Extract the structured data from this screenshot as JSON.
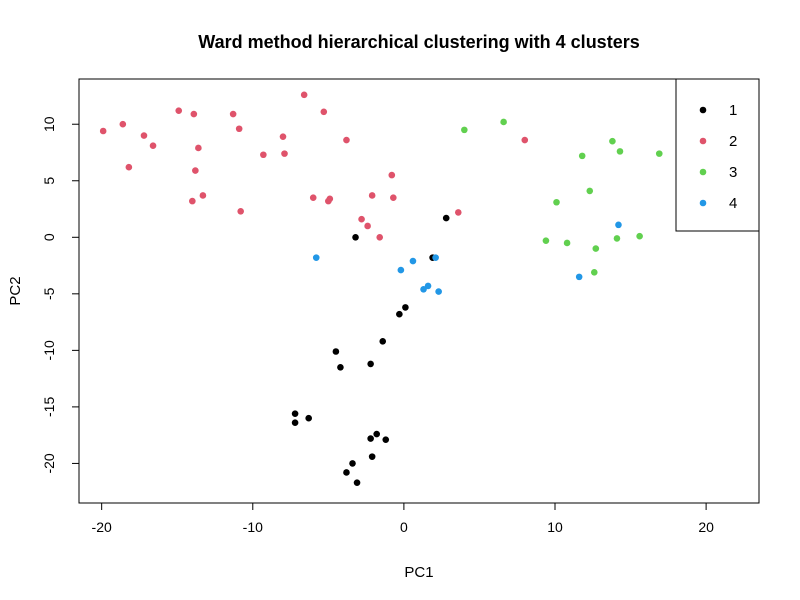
{
  "chart_data": {
    "type": "scatter",
    "title": "Ward method hierarchical clustering with 4 clusters",
    "xlabel": "PC1",
    "ylabel": "PC2",
    "xlim": [
      -21.5,
      23.5
    ],
    "ylim": [
      -23.5,
      14
    ],
    "x_ticks": [
      -20,
      -10,
      0,
      10,
      20
    ],
    "y_ticks": [
      -20,
      -15,
      -10,
      -5,
      0,
      5,
      10
    ],
    "legend": {
      "position": "top-right",
      "entries": [
        "1",
        "2",
        "3",
        "4"
      ]
    },
    "series": [
      {
        "name": "1",
        "color": "#000000",
        "points": [
          [
            -3.2,
            0.0
          ],
          [
            2.8,
            1.7
          ],
          [
            1.9,
            -1.8
          ],
          [
            0.1,
            -6.2
          ],
          [
            -0.3,
            -6.8
          ],
          [
            -1.4,
            -9.2
          ],
          [
            -4.5,
            -10.1
          ],
          [
            -4.2,
            -11.5
          ],
          [
            -2.2,
            -11.2
          ],
          [
            -7.2,
            -15.6
          ],
          [
            -7.2,
            -16.4
          ],
          [
            -6.3,
            -16.0
          ],
          [
            -1.8,
            -17.4
          ],
          [
            -2.2,
            -17.8
          ],
          [
            -1.2,
            -17.9
          ],
          [
            -2.1,
            -19.4
          ],
          [
            -3.4,
            -20.0
          ],
          [
            -3.8,
            -20.8
          ],
          [
            -3.1,
            -21.7
          ]
        ]
      },
      {
        "name": "2",
        "color": "#DF536B",
        "points": [
          [
            -19.9,
            9.4
          ],
          [
            -18.6,
            10.0
          ],
          [
            -17.2,
            9.0
          ],
          [
            -16.6,
            8.1
          ],
          [
            -18.2,
            6.2
          ],
          [
            -14.9,
            11.2
          ],
          [
            -13.9,
            10.9
          ],
          [
            -13.6,
            7.9
          ],
          [
            -13.8,
            5.9
          ],
          [
            -14.0,
            3.2
          ],
          [
            -13.3,
            3.7
          ],
          [
            -11.3,
            10.9
          ],
          [
            -10.9,
            9.6
          ],
          [
            -10.8,
            2.3
          ],
          [
            -9.3,
            7.3
          ],
          [
            -8.0,
            8.9
          ],
          [
            -7.9,
            7.4
          ],
          [
            -6.6,
            12.6
          ],
          [
            -6.0,
            3.5
          ],
          [
            -5.3,
            11.1
          ],
          [
            -4.9,
            3.4
          ],
          [
            -5.0,
            3.2
          ],
          [
            -3.8,
            8.6
          ],
          [
            -2.8,
            1.6
          ],
          [
            -2.4,
            1.0
          ],
          [
            -2.1,
            3.7
          ],
          [
            -1.6,
            0.0
          ],
          [
            -0.8,
            5.5
          ],
          [
            -0.7,
            3.5
          ],
          [
            3.6,
            2.2
          ],
          [
            8.0,
            8.6
          ]
        ]
      },
      {
        "name": "3",
        "color": "#61D04F",
        "points": [
          [
            4.0,
            9.5
          ],
          [
            6.6,
            10.2
          ],
          [
            9.4,
            -0.3
          ],
          [
            10.1,
            3.1
          ],
          [
            10.8,
            -0.5
          ],
          [
            11.8,
            7.2
          ],
          [
            12.3,
            4.1
          ],
          [
            12.7,
            -1.0
          ],
          [
            12.6,
            -3.1
          ],
          [
            13.8,
            8.5
          ],
          [
            14.3,
            7.6
          ],
          [
            14.1,
            -0.1
          ],
          [
            15.6,
            0.1
          ],
          [
            16.9,
            7.4
          ]
        ]
      },
      {
        "name": "4",
        "color": "#2297E6",
        "points": [
          [
            -5.8,
            -1.8
          ],
          [
            -0.2,
            -2.9
          ],
          [
            0.6,
            -2.1
          ],
          [
            1.3,
            -4.6
          ],
          [
            1.6,
            -4.3
          ],
          [
            2.1,
            -1.8
          ],
          [
            2.3,
            -4.8
          ],
          [
            11.6,
            -3.5
          ],
          [
            14.2,
            1.1
          ]
        ]
      }
    ]
  }
}
